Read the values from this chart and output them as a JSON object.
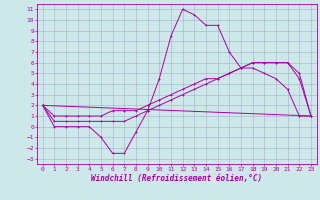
{
  "xlabel": "Windchill (Refroidissement éolien,°C)",
  "bg_color": "#cce8e8",
  "grid_color": "#aaaacc",
  "line_color": "#aa00aa",
  "xlim": [
    -0.5,
    23.5
  ],
  "ylim": [
    -3.5,
    11.5
  ],
  "xticks": [
    0,
    1,
    2,
    3,
    4,
    5,
    6,
    7,
    8,
    9,
    10,
    11,
    12,
    13,
    14,
    15,
    16,
    17,
    18,
    19,
    20,
    21,
    22,
    23
  ],
  "yticks": [
    -3,
    -2,
    -1,
    0,
    1,
    2,
    3,
    4,
    5,
    6,
    7,
    8,
    9,
    10,
    11
  ],
  "line1_x": [
    0,
    1,
    2,
    3,
    4,
    5,
    6,
    7,
    8,
    9,
    10,
    11,
    12,
    13,
    14,
    15,
    16,
    17,
    18,
    19,
    20,
    21,
    22,
    23
  ],
  "line1_y": [
    2,
    0,
    0,
    0,
    0,
    -1,
    -2.5,
    -2.5,
    -0.5,
    1.5,
    4.5,
    8.5,
    11,
    10.5,
    9.5,
    9.5,
    7,
    5.5,
    5.5,
    5,
    4.5,
    3.5,
    1,
    1
  ],
  "line2_x": [
    0,
    1,
    2,
    3,
    4,
    5,
    6,
    7,
    8,
    9,
    10,
    11,
    12,
    13,
    14,
    15,
    16,
    17,
    18,
    19,
    20,
    21,
    22,
    23
  ],
  "line2_y": [
    2,
    0.5,
    0.5,
    0.5,
    0.5,
    0.5,
    0.5,
    0.5,
    1,
    1.5,
    2,
    2.5,
    3,
    3.5,
    4,
    4.5,
    5,
    5.5,
    6,
    6,
    6,
    6,
    5,
    1
  ],
  "line3_x": [
    0,
    23
  ],
  "line3_y": [
    2,
    1
  ],
  "line4_x": [
    0,
    1,
    2,
    3,
    4,
    5,
    6,
    7,
    8,
    9,
    10,
    11,
    12,
    13,
    14,
    15,
    16,
    17,
    18,
    19,
    20,
    21,
    22,
    23
  ],
  "line4_y": [
    2,
    1,
    1,
    1,
    1,
    1,
    1.5,
    1.5,
    1.5,
    2,
    2.5,
    3,
    3.5,
    4,
    4.5,
    4.5,
    5,
    5.5,
    6,
    6,
    6,
    6,
    4.5,
    1
  ],
  "figsize": [
    3.2,
    2.0
  ],
  "dpi": 100
}
